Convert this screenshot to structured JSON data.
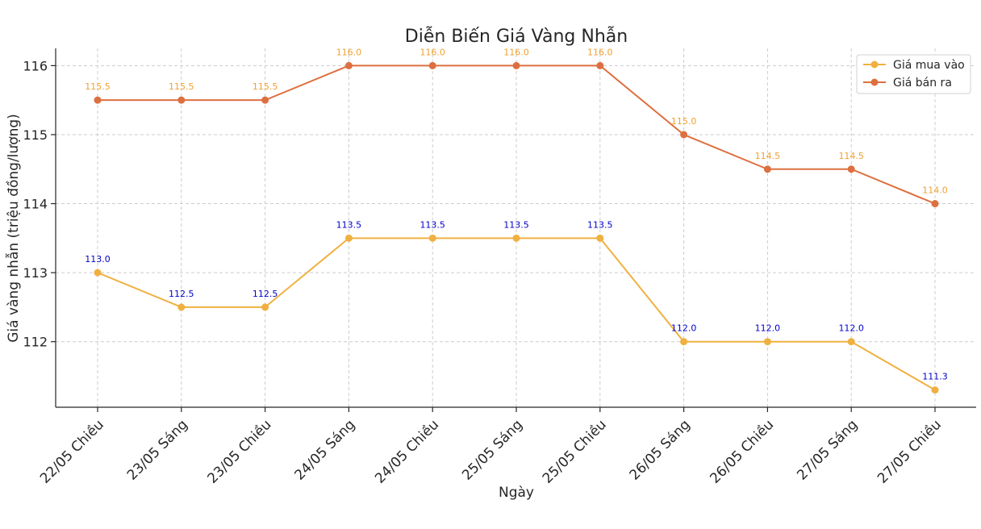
{
  "chart_data": {
    "type": "line",
    "title": "Diễn Biến Giá Vàng Nhẫn",
    "xlabel": "Ngày",
    "ylabel": "Giá vàng nhẫn (triệu đồng/lượng)",
    "categories": [
      "22/05 Chiều",
      "23/05 Sáng",
      "23/05 Chiều",
      "24/05 Sáng",
      "24/05 Chiều",
      "25/05 Sáng",
      "25/05 Chiều",
      "26/05 Sáng",
      "26/05 Chiều",
      "27/05 Sáng",
      "27/05 Chiều"
    ],
    "ylim": [
      111.05,
      116.25
    ],
    "yticks": [
      112,
      113,
      114,
      115,
      116
    ],
    "grid": true,
    "legend_position": "top-right",
    "series": [
      {
        "name": "Giá mua vào",
        "color": "#f0b040",
        "label_color": "#0000cc",
        "values": [
          113.0,
          112.5,
          112.5,
          113.5,
          113.5,
          113.5,
          113.5,
          112.0,
          112.0,
          112.0,
          111.3
        ],
        "data_labels": [
          "113.0",
          "112.5",
          "112.5",
          "113.5",
          "113.5",
          "113.5",
          "113.5",
          "112.0",
          "112.0",
          "112.0",
          "111.3"
        ]
      },
      {
        "name": "Giá bán ra",
        "color": "#dd7040",
        "label_color": "#f0a030",
        "values": [
          115.5,
          115.5,
          115.5,
          116.0,
          116.0,
          116.0,
          116.0,
          115.0,
          114.5,
          114.5,
          114.0
        ],
        "data_labels": [
          "115.5",
          "115.5",
          "115.5",
          "116.0",
          "116.0",
          "116.0",
          "116.0",
          "115.0",
          "114.5",
          "114.5",
          "114.0"
        ]
      }
    ]
  }
}
